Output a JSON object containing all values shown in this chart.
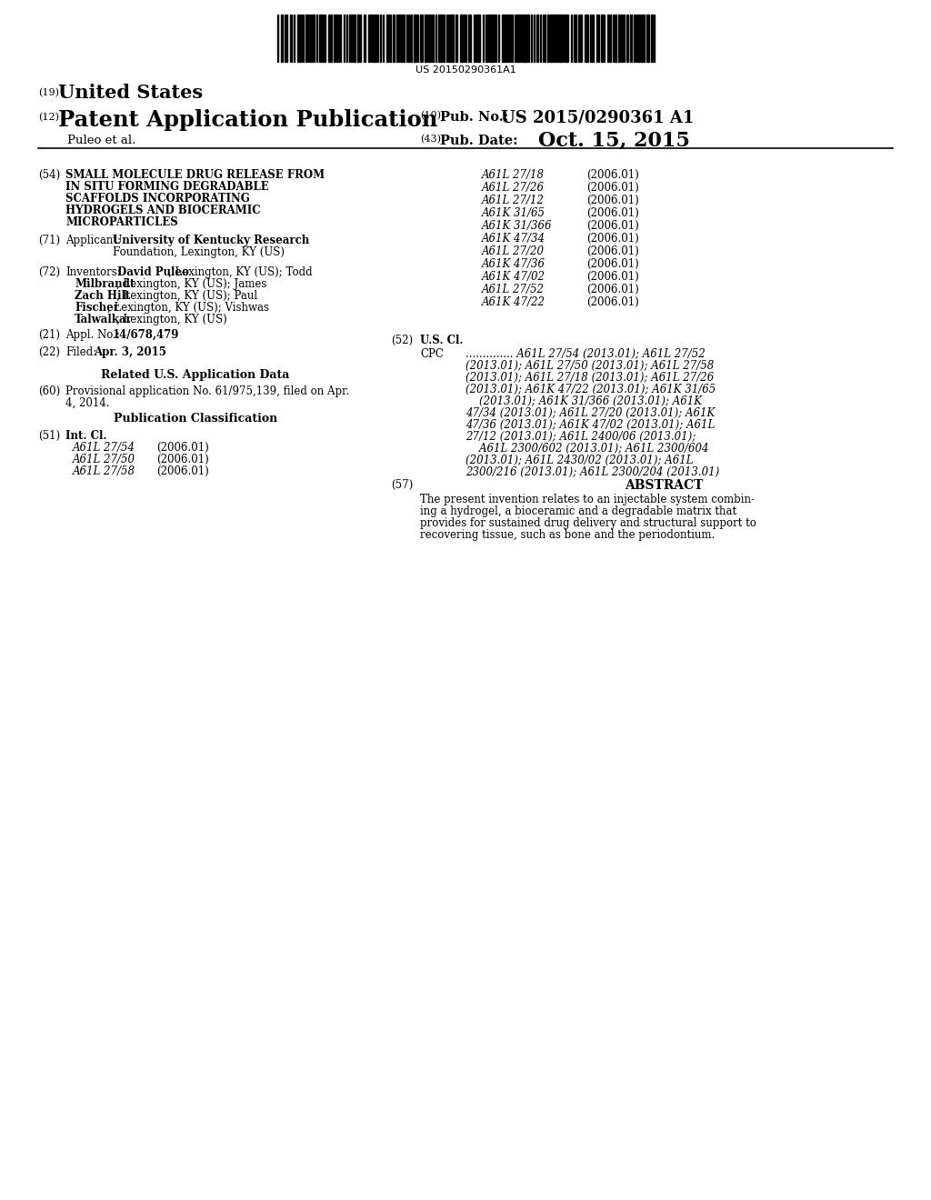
{
  "background_color": "#ffffff",
  "barcode_text": "US 20150290361A1",
  "header_19_text": "United States",
  "header_12_text": "Patent Application Publication",
  "header_10_number": "US 2015/0290361 A1",
  "header_43_date": "Oct. 15, 2015",
  "inventor_line": "Puleo et al.",
  "field_54_title_lines": [
    "SMALL MOLECULE DRUG RELEASE FROM",
    "IN SITU FORMING DEGRADABLE",
    "SCAFFOLDS INCORPORATING",
    "HYDROGELS AND BIOCERAMIC",
    "MICROPARTICLES"
  ],
  "field_71_applicant_bold": "University of Kentucky Research",
  "field_71_applicant_normal": "Foundation, Lexington, KY (US)",
  "field_72_inv_lines": [
    [
      "David Puleo",
      ", Lexington, KY (US); Todd"
    ],
    [
      "Milbrandt",
      ", Lexington, KY (US); James"
    ],
    [
      "Zach Hilt",
      ", Lexington, KY (US); Paul"
    ],
    [
      "Fischer",
      ", Lexington, KY (US); Vishwas"
    ],
    [
      "Talwalkar",
      ", Lexington, KY (US)"
    ]
  ],
  "field_21_text": "14/678,479",
  "field_22_text": "Apr. 3, 2015",
  "field_60_lines": [
    "Provisional application No. 61/975,139, filed on Apr.",
    "4, 2014."
  ],
  "field_51_classes": [
    [
      "A61L 27/54",
      "(2006.01)"
    ],
    [
      "A61L 27/50",
      "(2006.01)"
    ],
    [
      "A61L 27/58",
      "(2006.01)"
    ]
  ],
  "right_col_classes": [
    [
      "A61L 27/18",
      "(2006.01)"
    ],
    [
      "A61L 27/26",
      "(2006.01)"
    ],
    [
      "A61L 27/12",
      "(2006.01)"
    ],
    [
      "A61K 31/65",
      "(2006.01)"
    ],
    [
      "A61K 31/366",
      "(2006.01)"
    ],
    [
      "A61K 47/34",
      "(2006.01)"
    ],
    [
      "A61L 27/20",
      "(2006.01)"
    ],
    [
      "A61K 47/36",
      "(2006.01)"
    ],
    [
      "A61K 47/02",
      "(2006.01)"
    ],
    [
      "A61L 27/52",
      "(2006.01)"
    ],
    [
      "A61K 47/22",
      "(2006.01)"
    ]
  ],
  "field_52_cpc_lines": [
    [
      ".............. ",
      "A61L 27/54",
      " (2013.01); ",
      "A61L 27/52"
    ],
    [
      "(2013.01); ",
      "A61L 27/50",
      " (2013.01); ",
      "A61L 27/58"
    ],
    [
      "(2013.01); ",
      "A61L 27/18",
      " (2013.01); ",
      "A61L 27/26"
    ],
    [
      "(2013.01); ",
      "A61K 47/22",
      " (2013.01); ",
      "A61K 31/65"
    ],
    [
      "    (2013.01); ",
      "A61K 31/366",
      " (2013.01); ",
      "A61K"
    ],
    [
      "47/34",
      " (2013.01); ",
      "A61L 27/20",
      " (2013.01); ",
      "A61K"
    ],
    [
      "47/36",
      " (2013.01); ",
      "A61K 47/02",
      " (2013.01); ",
      "A61L"
    ],
    [
      "27/12",
      " (2013.01); ",
      "A61L 2400/06",
      " (2013.01);"
    ],
    [
      "    ",
      "A61L 2300/602",
      " (2013.01); ",
      "A61L 2300/604"
    ],
    [
      "(2013.01); ",
      "A61L 2430/02",
      " (2013.01); ",
      "A61L"
    ],
    [
      "2300/216",
      " (2013.01); ",
      "A61L 2300/204",
      " (2013.01)"
    ]
  ],
  "field_57_text_lines": [
    "The present invention relates to an injectable system combin-",
    "ing a hydrogel, a bioceramic and a degradable matrix that",
    "provides for sustained drug delivery and structural support to",
    "recovering tissue, such as bone and the periodontium."
  ]
}
